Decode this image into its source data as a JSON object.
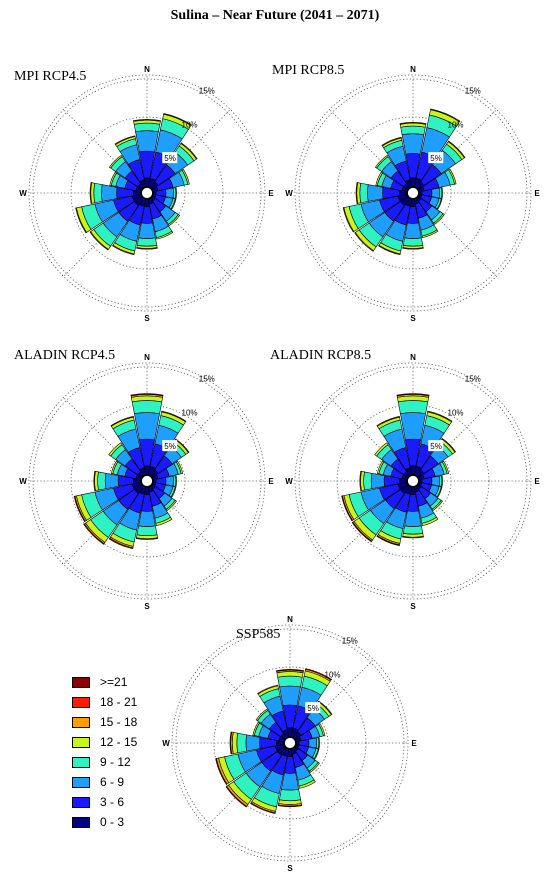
{
  "title": "Sulina – Near Future (2041 – 2071)",
  "colors": {
    "petal_outline": "#000000",
    "grid": "#555555",
    "calm_center": "#000000"
  },
  "legend": [
    {
      "label": ">=21",
      "color": "#8b0000"
    },
    {
      "label": "18 - 21",
      "color": "#ff1a00"
    },
    {
      "label": "15 - 18",
      "color": "#ff9d00"
    },
    {
      "label": "12 - 15",
      "color": "#c7f51c"
    },
    {
      "label": "9 - 12",
      "color": "#2ef2c2"
    },
    {
      "label": "6 - 9",
      "color": "#1e9eff"
    },
    {
      "label": "3 - 6",
      "color": "#1a1aff"
    },
    {
      "label": "0 - 3",
      "color": "#000080"
    }
  ],
  "chart_data": [
    {
      "type": "windrose",
      "title": "MPI RCP4.5",
      "directions": [
        "N",
        "E",
        "S",
        "W"
      ],
      "rings": [
        "5%",
        "10%",
        "15%"
      ],
      "sectors": 16,
      "bins": [
        "0 - 3",
        "3 - 6",
        "6 - 9",
        "9 - 12",
        "12 - 15",
        "15 - 18",
        "18 - 21",
        ">=21"
      ],
      "cumulative_percent": [
        [
          2.0,
          5.5,
          8.2,
          9.2,
          9.6,
          9.7,
          9.7,
          9.7
        ],
        [
          2.0,
          5.5,
          8.5,
          10.0,
          10.6,
          10.7,
          10.7,
          10.7
        ],
        [
          1.8,
          4.5,
          6.5,
          7.5,
          7.9,
          8.0,
          8.0,
          8.0
        ],
        [
          1.5,
          3.5,
          5.0,
          5.5,
          5.7,
          5.7,
          5.7,
          5.7
        ],
        [
          1.2,
          2.5,
          3.5,
          3.8,
          3.9,
          3.9,
          3.9,
          3.9
        ],
        [
          1.2,
          2.5,
          3.5,
          3.8,
          3.9,
          3.9,
          3.9,
          3.9
        ],
        [
          1.3,
          3.0,
          4.5,
          5.0,
          5.2,
          5.2,
          5.2,
          5.2
        ],
        [
          1.5,
          3.5,
          5.2,
          6.0,
          6.2,
          6.2,
          6.2,
          6.2
        ],
        [
          1.8,
          4.0,
          6.0,
          7.0,
          7.3,
          7.4,
          7.4,
          7.4
        ],
        [
          1.8,
          4.3,
          6.5,
          7.8,
          8.2,
          8.3,
          8.3,
          8.3
        ],
        [
          2.0,
          4.5,
          7.0,
          8.5,
          9.0,
          9.1,
          9.1,
          9.1
        ],
        [
          2.0,
          4.5,
          7.0,
          8.8,
          9.5,
          9.6,
          9.6,
          9.6
        ],
        [
          1.8,
          4.0,
          6.0,
          7.0,
          7.4,
          7.5,
          7.5,
          7.5
        ],
        [
          1.5,
          3.0,
          4.2,
          4.8,
          5.0,
          5.0,
          5.0,
          5.0
        ],
        [
          1.5,
          3.5,
          5.0,
          5.8,
          6.0,
          6.0,
          6.0,
          6.0
        ],
        [
          1.8,
          4.5,
          6.5,
          7.3,
          7.6,
          7.7,
          7.7,
          7.7
        ]
      ]
    },
    {
      "type": "windrose",
      "title": "MPI RCP8.5",
      "directions": [
        "N",
        "E",
        "S",
        "W"
      ],
      "rings": [
        "5%",
        "10%",
        "15%"
      ],
      "sectors": 16,
      "bins": [
        "0 - 3",
        "3 - 6",
        "6 - 9",
        "9 - 12",
        "12 - 15",
        "15 - 18",
        "18 - 21",
        ">=21"
      ],
      "cumulative_percent": [
        [
          2.0,
          5.2,
          7.8,
          8.8,
          9.2,
          9.3,
          9.3,
          9.3
        ],
        [
          2.0,
          5.5,
          8.8,
          10.5,
          11.2,
          11.3,
          11.3,
          11.3
        ],
        [
          1.8,
          4.5,
          6.8,
          7.8,
          8.2,
          8.3,
          8.3,
          8.3
        ],
        [
          1.5,
          3.5,
          5.0,
          5.6,
          5.8,
          5.8,
          5.8,
          5.8
        ],
        [
          1.2,
          2.5,
          3.5,
          3.8,
          3.9,
          3.9,
          3.9,
          3.9
        ],
        [
          1.2,
          2.5,
          3.5,
          3.8,
          3.9,
          3.9,
          3.9,
          3.9
        ],
        [
          1.3,
          3.0,
          4.3,
          4.8,
          5.0,
          5.0,
          5.0,
          5.0
        ],
        [
          1.5,
          3.4,
          5.0,
          5.8,
          6.0,
          6.0,
          6.0,
          6.0
        ],
        [
          1.8,
          4.0,
          6.0,
          7.0,
          7.3,
          7.4,
          7.4,
          7.4
        ],
        [
          1.8,
          4.3,
          6.5,
          7.8,
          8.2,
          8.3,
          8.3,
          8.3
        ],
        [
          2.0,
          4.5,
          7.0,
          8.6,
          9.2,
          9.3,
          9.3,
          9.3
        ],
        [
          2.0,
          4.5,
          7.0,
          8.6,
          9.3,
          9.4,
          9.4,
          9.4
        ],
        [
          1.8,
          4.0,
          6.0,
          7.0,
          7.4,
          7.5,
          7.5,
          7.5
        ],
        [
          1.5,
          3.0,
          4.2,
          4.8,
          5.0,
          5.0,
          5.0,
          5.0
        ],
        [
          1.5,
          3.5,
          5.0,
          5.8,
          6.0,
          6.0,
          6.0,
          6.0
        ],
        [
          1.8,
          4.3,
          6.3,
          7.1,
          7.4,
          7.5,
          7.5,
          7.5
        ]
      ]
    },
    {
      "type": "windrose",
      "title": "ALADIN RCP4.5",
      "directions": [
        "N",
        "E",
        "S",
        "W"
      ],
      "rings": [
        "5%",
        "10%",
        "15%"
      ],
      "sectors": 16,
      "bins": [
        "0 - 3",
        "3 - 6",
        "6 - 9",
        "9 - 12",
        "12 - 15",
        "15 - 18",
        "18 - 21",
        ">=21"
      ],
      "cumulative_percent": [
        [
          2.0,
          5.5,
          9.0,
          10.6,
          11.2,
          11.4,
          11.5,
          11.5
        ],
        [
          2.0,
          5.0,
          7.5,
          8.8,
          9.3,
          9.4,
          9.4,
          9.4
        ],
        [
          1.8,
          4.0,
          5.5,
          6.2,
          6.6,
          6.7,
          6.7,
          6.7
        ],
        [
          1.5,
          3.0,
          4.2,
          4.6,
          4.8,
          4.8,
          4.8,
          4.8
        ],
        [
          1.2,
          2.5,
          3.5,
          3.8,
          3.9,
          3.9,
          3.9,
          3.9
        ],
        [
          1.2,
          2.5,
          3.5,
          3.8,
          3.9,
          3.9,
          3.9,
          3.9
        ],
        [
          1.3,
          2.8,
          4.0,
          4.5,
          4.7,
          4.7,
          4.7,
          4.7
        ],
        [
          1.5,
          3.4,
          5.0,
          5.7,
          6.0,
          6.0,
          6.0,
          6.0
        ],
        [
          1.8,
          4.0,
          6.0,
          7.2,
          7.6,
          7.7,
          7.7,
          7.7
        ],
        [
          1.8,
          4.3,
          6.6,
          8.2,
          8.8,
          9.0,
          9.1,
          9.1
        ],
        [
          2.0,
          4.5,
          7.0,
          9.0,
          9.8,
          10.0,
          10.1,
          10.1
        ],
        [
          2.0,
          4.5,
          7.0,
          8.8,
          9.5,
          9.7,
          9.8,
          9.8
        ],
        [
          1.8,
          3.8,
          5.5,
          6.5,
          6.9,
          7.0,
          7.0,
          7.0
        ],
        [
          1.5,
          3.0,
          4.0,
          4.6,
          4.8,
          4.8,
          4.8,
          4.8
        ],
        [
          1.5,
          3.5,
          5.0,
          5.8,
          6.1,
          6.1,
          6.1,
          6.1
        ],
        [
          1.8,
          4.5,
          7.0,
          8.2,
          8.6,
          8.7,
          8.7,
          8.7
        ]
      ]
    },
    {
      "type": "windrose",
      "title": "ALADIN RCP8.5",
      "directions": [
        "N",
        "E",
        "S",
        "W"
      ],
      "rings": [
        "5%",
        "10%",
        "15%"
      ],
      "sectors": 16,
      "bins": [
        "0 - 3",
        "3 - 6",
        "6 - 9",
        "9 - 12",
        "12 - 15",
        "15 - 18",
        "18 - 21",
        ">=21"
      ],
      "cumulative_percent": [
        [
          2.0,
          5.5,
          9.0,
          10.6,
          11.2,
          11.4,
          11.5,
          11.5
        ],
        [
          2.0,
          5.0,
          7.5,
          8.8,
          9.3,
          9.4,
          9.4,
          9.4
        ],
        [
          1.8,
          4.0,
          5.6,
          6.3,
          6.7,
          6.8,
          6.8,
          6.8
        ],
        [
          1.5,
          3.0,
          4.2,
          4.6,
          4.8,
          4.8,
          4.8,
          4.8
        ],
        [
          1.2,
          2.5,
          3.5,
          3.8,
          3.9,
          3.9,
          3.9,
          3.9
        ],
        [
          1.2,
          2.5,
          3.5,
          3.8,
          3.9,
          3.9,
          3.9,
          3.9
        ],
        [
          1.3,
          2.8,
          4.0,
          4.5,
          4.7,
          4.7,
          4.7,
          4.7
        ],
        [
          1.5,
          3.4,
          5.0,
          5.7,
          6.0,
          6.0,
          6.0,
          6.0
        ],
        [
          1.8,
          4.0,
          6.0,
          7.0,
          7.4,
          7.5,
          7.5,
          7.5
        ],
        [
          1.8,
          4.2,
          6.4,
          7.8,
          8.4,
          8.6,
          8.7,
          8.7
        ],
        [
          2.0,
          4.4,
          6.8,
          8.6,
          9.4,
          9.6,
          9.7,
          9.7
        ],
        [
          2.0,
          4.5,
          7.0,
          8.6,
          9.3,
          9.5,
          9.6,
          9.6
        ],
        [
          1.8,
          3.8,
          5.5,
          6.5,
          6.9,
          7.0,
          7.0,
          7.0
        ],
        [
          1.5,
          3.0,
          4.0,
          4.6,
          4.8,
          4.8,
          4.8,
          4.8
        ],
        [
          1.5,
          3.5,
          5.0,
          5.8,
          6.1,
          6.1,
          6.1,
          6.1
        ],
        [
          1.8,
          4.5,
          7.0,
          8.2,
          8.6,
          8.7,
          8.7,
          8.7
        ]
      ]
    },
    {
      "type": "windrose",
      "title": "SSP585",
      "directions": [
        "N",
        "E",
        "S",
        "W"
      ],
      "rings": [
        "5%",
        "10%",
        "15%"
      ],
      "sectors": 16,
      "bins": [
        "0 - 3",
        "3 - 6",
        "6 - 9",
        "9 - 12",
        "12 - 15",
        "15 - 18",
        "18 - 21",
        ">=21"
      ],
      "cumulative_percent": [
        [
          2.0,
          5.0,
          7.5,
          8.8,
          9.4,
          9.6,
          9.7,
          9.7
        ],
        [
          2.0,
          5.0,
          7.5,
          9.0,
          9.7,
          9.9,
          10.0,
          10.0
        ],
        [
          1.8,
          4.0,
          5.5,
          6.2,
          6.6,
          6.7,
          6.7,
          6.7
        ],
        [
          1.5,
          3.0,
          4.0,
          4.5,
          4.7,
          4.7,
          4.7,
          4.7
        ],
        [
          1.2,
          2.5,
          3.5,
          3.8,
          3.9,
          3.9,
          3.9,
          3.9
        ],
        [
          1.2,
          2.5,
          3.5,
          3.8,
          3.9,
          3.9,
          3.9,
          3.9
        ],
        [
          1.3,
          2.8,
          4.0,
          4.5,
          4.7,
          4.7,
          4.7,
          4.7
        ],
        [
          1.5,
          3.3,
          5.0,
          5.8,
          6.1,
          6.1,
          6.1,
          6.1
        ],
        [
          1.8,
          4.0,
          6.2,
          7.6,
          8.1,
          8.3,
          8.4,
          8.4
        ],
        [
          1.8,
          4.3,
          6.8,
          8.6,
          9.2,
          9.4,
          9.5,
          9.5
        ],
        [
          2.0,
          4.5,
          7.0,
          9.0,
          9.8,
          10.1,
          10.2,
          10.2
        ],
        [
          2.0,
          4.5,
          7.0,
          8.8,
          9.6,
          9.9,
          10.0,
          10.0
        ],
        [
          1.8,
          4.0,
          5.8,
          7.0,
          7.6,
          7.8,
          7.9,
          7.9
        ],
        [
          1.5,
          3.0,
          4.2,
          4.8,
          5.0,
          5.0,
          5.0,
          5.0
        ],
        [
          1.5,
          3.3,
          4.6,
          5.2,
          5.4,
          5.4,
          5.4,
          5.4
        ],
        [
          1.8,
          4.3,
          6.3,
          7.3,
          7.7,
          7.8,
          7.8,
          7.8
        ]
      ]
    }
  ]
}
